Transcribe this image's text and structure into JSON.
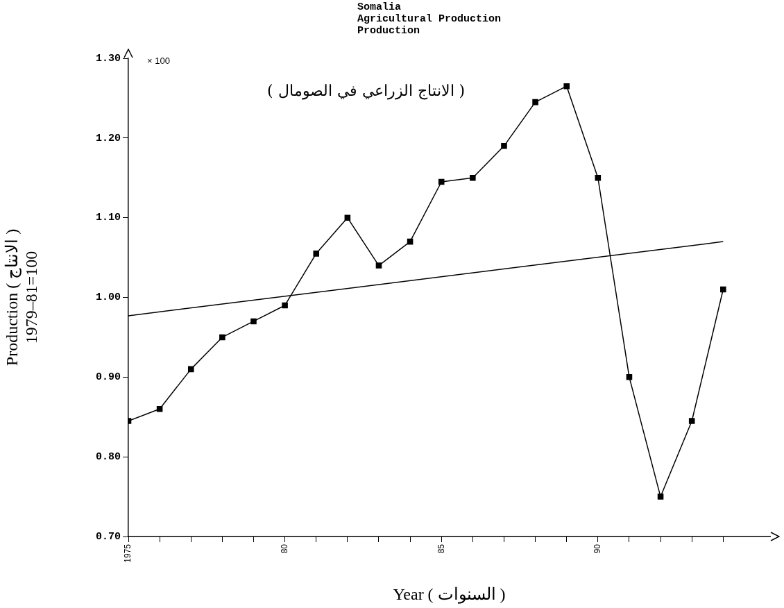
{
  "chart_data": {
    "type": "line",
    "title": "Somalia\nAgricultural Production\nProduction",
    "subtitle": "( الانتاج الزراعي في الصومال )",
    "xlabel": "Year ( السنوات )",
    "ylabel": "Production ( الانتاج )\n1979–81=100",
    "annotations": [
      "× 100"
    ],
    "xlim": [
      1975,
      1995.5
    ],
    "xticks": [
      {
        "value": 1975,
        "label": "1975"
      },
      {
        "value": 1976,
        "label": null
      },
      {
        "value": 1977,
        "label": null
      },
      {
        "value": 1978,
        "label": null
      },
      {
        "value": 1979,
        "label": null
      },
      {
        "value": 1980,
        "label": "80"
      },
      {
        "value": 1981,
        "label": null
      },
      {
        "value": 1982,
        "label": null
      },
      {
        "value": 1983,
        "label": null
      },
      {
        "value": 1984,
        "label": null
      },
      {
        "value": 1985,
        "label": "85"
      },
      {
        "value": 1986,
        "label": null
      },
      {
        "value": 1987,
        "label": null
      },
      {
        "value": 1988,
        "label": null
      },
      {
        "value": 1989,
        "label": null
      },
      {
        "value": 1990,
        "label": "90"
      },
      {
        "value": 1991,
        "label": null
      },
      {
        "value": 1992,
        "label": null
      },
      {
        "value": 1993,
        "label": null
      },
      {
        "value": 1994,
        "label": null
      }
    ],
    "ylim": [
      0.7,
      1.3
    ],
    "yticks": [
      {
        "value": 0.7,
        "label": "0.70"
      },
      {
        "value": 0.8,
        "label": "0.80"
      },
      {
        "value": 0.9,
        "label": "0.90"
      },
      {
        "value": 1.0,
        "label": "1.00"
      },
      {
        "value": 1.1,
        "label": "1.10"
      },
      {
        "value": 1.2,
        "label": "1.20"
      },
      {
        "value": 1.3,
        "label": "1.30"
      }
    ],
    "marker": "square",
    "series": [
      {
        "color": "#000000",
        "x": [
          1975,
          1976,
          1977,
          1978,
          1979,
          1980,
          1981,
          1982,
          1983,
          1984,
          1985,
          1986,
          1987,
          1988,
          1989,
          1990,
          1991,
          1992,
          1993,
          1994
        ],
        "values": [
          0.845,
          0.86,
          0.91,
          0.95,
          0.97,
          0.99,
          1.055,
          1.1,
          1.04,
          1.07,
          1.145,
          1.15,
          1.19,
          1.245,
          1.265,
          1.15,
          0.9,
          0.75,
          0.845,
          1.01
        ]
      },
      {
        "type": "line",
        "marker": "none",
        "color": "#000000",
        "x": [
          1975,
          1994
        ],
        "values": [
          0.977,
          1.07
        ]
      }
    ]
  }
}
